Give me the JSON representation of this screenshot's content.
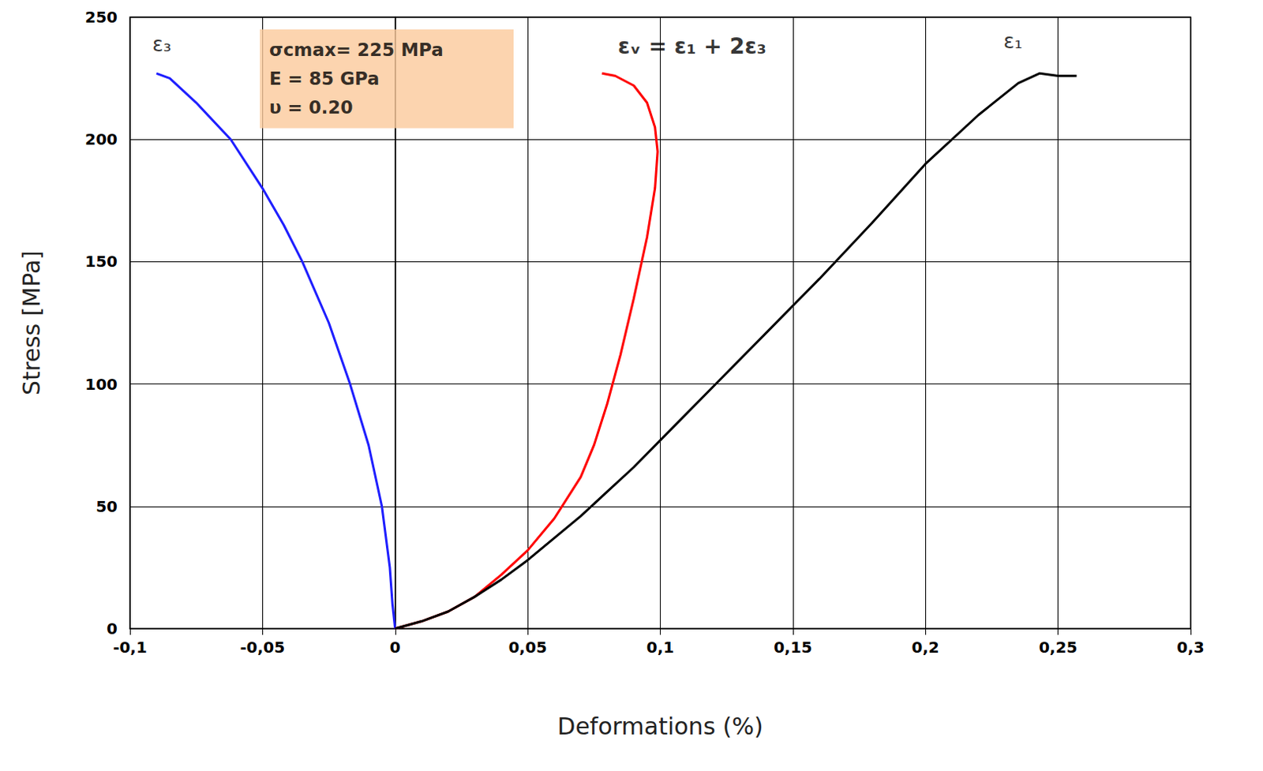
{
  "chart_data": {
    "type": "line",
    "x_label": "Deformations (%)",
    "y_label": "Stress [MPa]",
    "xlim": [
      -0.1,
      0.3
    ],
    "xticks": [
      {
        "value": -0.1,
        "label": "-0,1"
      },
      {
        "value": -0.05,
        "label": "-0,05"
      },
      0,
      {
        "value": 0.05,
        "label": "0,05"
      },
      {
        "value": 0.1,
        "label": "0,1"
      },
      {
        "value": 0.15,
        "label": "0,15"
      },
      {
        "value": 0.2,
        "label": "0,2"
      },
      {
        "value": 0.25,
        "label": "0,25"
      },
      {
        "value": 0.3,
        "label": "0,3"
      }
    ],
    "ylim": [
      0,
      250
    ],
    "yticks": [
      0,
      50,
      100,
      150,
      200,
      250
    ],
    "grid": true,
    "series": [
      {
        "name": "ε₃",
        "color": "#1f1fff",
        "x": [
          0,
          -0.001,
          -0.002,
          -0.005,
          -0.01,
          -0.017,
          -0.025,
          -0.035,
          -0.042,
          -0.05,
          -0.062,
          -0.075,
          -0.085,
          -0.09
        ],
        "values": [
          0,
          10,
          25,
          50,
          75,
          100,
          125,
          150,
          165,
          180,
          200,
          215,
          225,
          227
        ]
      },
      {
        "name": "εᵥ",
        "color": "#ff0000",
        "x": [
          0,
          0.01,
          0.02,
          0.03,
          0.04,
          0.05,
          0.06,
          0.07,
          0.075,
          0.08,
          0.085,
          0.09,
          0.095,
          0.098,
          0.099,
          0.098,
          0.095,
          0.09,
          0.083,
          0.078
        ],
        "values": [
          0,
          3,
          7,
          13,
          22,
          32,
          45,
          62,
          75,
          92,
          112,
          135,
          160,
          180,
          195,
          205,
          215,
          222,
          226,
          227
        ]
      },
      {
        "name": "ε₁",
        "color": "#000000",
        "x": [
          0,
          0.01,
          0.02,
          0.03,
          0.04,
          0.05,
          0.06,
          0.07,
          0.08,
          0.09,
          0.1,
          0.12,
          0.14,
          0.16,
          0.18,
          0.2,
          0.22,
          0.235,
          0.243,
          0.25,
          0.257
        ],
        "values": [
          0,
          3,
          7,
          13,
          20,
          28,
          37,
          46,
          56,
          66,
          77,
          99,
          121,
          143,
          166,
          190,
          210,
          223,
          227,
          226,
          226
        ]
      }
    ],
    "annotations": [
      {
        "text": "ε₃",
        "x": -0.088,
        "y": 239
      },
      {
        "text": "ε₁",
        "x": 0.233,
        "y": 240
      },
      {
        "text": "εᵥ = ε₁ + 2ε₃",
        "x": 0.112,
        "y": 238
      }
    ],
    "text_box": {
      "lines": [
        "σcmax= 225 MPa",
        "E = 85 GPa",
        "υ = 0.20"
      ],
      "x": -0.051,
      "y": 245,
      "color": "#fbc99b"
    }
  }
}
